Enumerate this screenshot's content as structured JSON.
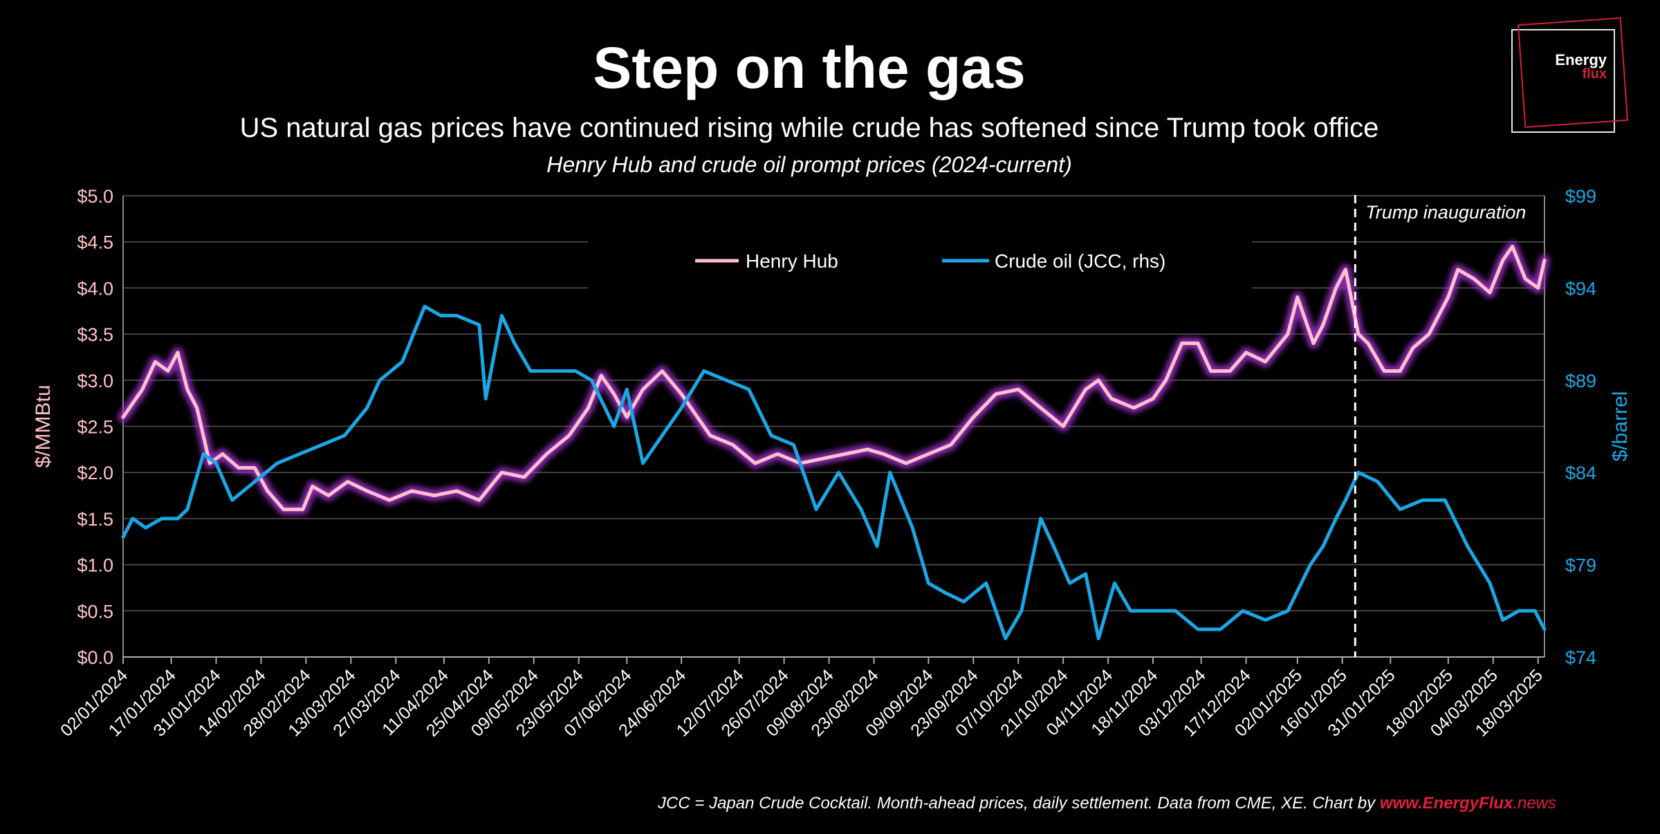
{
  "header": {
    "title": "Step on the gas",
    "subtitle": "US natural gas prices have continued rising while crude has softened since Trump took office",
    "subtitle2": "Henry Hub and crude oil prompt prices (2024-current)"
  },
  "logo": {
    "line1": "Energy",
    "line2": "flux"
  },
  "footer": {
    "note": "JCC = Japan Crude Cocktail. Month-ahead prices, daily settlement. Data from CME, XE. Chart by ",
    "link_a": "www.EnergyFlux",
    "link_b": ".news"
  },
  "colors": {
    "henry_hub": "#ffc0cb",
    "henry_hub_glow": "#9b30c8",
    "crude": "#1aa7e6",
    "left_axis": "#ffc0cb",
    "right_axis": "#1aa7e6",
    "grid": "#555555"
  },
  "chart_data": {
    "type": "line",
    "title": "Step on the gas",
    "ylabel": "$/MMBtu",
    "y2label": "$/barrel",
    "ylim": [
      0,
      5
    ],
    "y2lim": [
      74,
      99
    ],
    "grid": true,
    "legend_position": "top-center",
    "yticks": [
      "$0.0",
      "$0.5",
      "$1.0",
      "$1.5",
      "$2.0",
      "$2.5",
      "$3.0",
      "$3.5",
      "$4.0",
      "$4.5",
      "$5.0"
    ],
    "y2ticks": [
      "$74",
      "$79",
      "$84",
      "$89",
      "$94",
      "$99"
    ],
    "xticks": [
      "02/01/2024",
      "17/01/2024",
      "31/01/2024",
      "14/02/2024",
      "28/02/2024",
      "13/03/2024",
      "27/03/2024",
      "11/04/2024",
      "25/04/2024",
      "09/05/2024",
      "23/05/2024",
      "07/06/2024",
      "24/06/2024",
      "12/07/2024",
      "26/07/2024",
      "09/08/2024",
      "23/08/2024",
      "09/09/2024",
      "23/09/2024",
      "07/10/2024",
      "21/10/2024",
      "04/11/2024",
      "18/11/2024",
      "03/12/2024",
      "17/12/2024",
      "02/01/2025",
      "16/01/2025",
      "31/01/2025",
      "18/02/2025",
      "04/03/2025",
      "18/03/2025"
    ],
    "annotation": {
      "label": "Trump inauguration",
      "x": "2025-01-20"
    },
    "series": [
      {
        "name": "Henry Hub",
        "axis": "left",
        "points": [
          [
            "2024-01-02",
            2.6
          ],
          [
            "2024-01-08",
            2.9
          ],
          [
            "2024-01-12",
            3.2
          ],
          [
            "2024-01-16",
            3.1
          ],
          [
            "2024-01-19",
            3.3
          ],
          [
            "2024-01-22",
            2.9
          ],
          [
            "2024-01-25",
            2.7
          ],
          [
            "2024-01-29",
            2.1
          ],
          [
            "2024-02-02",
            2.2
          ],
          [
            "2024-02-07",
            2.05
          ],
          [
            "2024-02-12",
            2.05
          ],
          [
            "2024-02-16",
            1.8
          ],
          [
            "2024-02-21",
            1.6
          ],
          [
            "2024-02-27",
            1.6
          ],
          [
            "2024-03-01",
            1.85
          ],
          [
            "2024-03-06",
            1.75
          ],
          [
            "2024-03-12",
            1.9
          ],
          [
            "2024-03-18",
            1.8
          ],
          [
            "2024-03-25",
            1.7
          ],
          [
            "2024-04-01",
            1.8
          ],
          [
            "2024-04-08",
            1.75
          ],
          [
            "2024-04-15",
            1.8
          ],
          [
            "2024-04-22",
            1.7
          ],
          [
            "2024-04-29",
            2.0
          ],
          [
            "2024-05-06",
            1.95
          ],
          [
            "2024-05-13",
            2.2
          ],
          [
            "2024-05-20",
            2.4
          ],
          [
            "2024-05-26",
            2.7
          ],
          [
            "2024-05-30",
            3.05
          ],
          [
            "2024-06-03",
            2.85
          ],
          [
            "2024-06-07",
            2.6
          ],
          [
            "2024-06-12",
            2.9
          ],
          [
            "2024-06-18",
            3.1
          ],
          [
            "2024-06-24",
            2.85
          ],
          [
            "2024-06-28",
            2.65
          ],
          [
            "2024-07-03",
            2.4
          ],
          [
            "2024-07-10",
            2.3
          ],
          [
            "2024-07-17",
            2.1
          ],
          [
            "2024-07-24",
            2.2
          ],
          [
            "2024-07-31",
            2.1
          ],
          [
            "2024-08-07",
            2.15
          ],
          [
            "2024-08-14",
            2.2
          ],
          [
            "2024-08-21",
            2.25
          ],
          [
            "2024-08-26",
            2.2
          ],
          [
            "2024-09-02",
            2.1
          ],
          [
            "2024-09-09",
            2.2
          ],
          [
            "2024-09-16",
            2.3
          ],
          [
            "2024-09-23",
            2.6
          ],
          [
            "2024-09-30",
            2.85
          ],
          [
            "2024-10-07",
            2.9
          ],
          [
            "2024-10-14",
            2.7
          ],
          [
            "2024-10-21",
            2.5
          ],
          [
            "2024-10-28",
            2.9
          ],
          [
            "2024-11-01",
            3.0
          ],
          [
            "2024-11-05",
            2.8
          ],
          [
            "2024-11-12",
            2.7
          ],
          [
            "2024-11-18",
            2.8
          ],
          [
            "2024-11-22",
            3.0
          ],
          [
            "2024-11-27",
            3.4
          ],
          [
            "2024-12-02",
            3.4
          ],
          [
            "2024-12-06",
            3.1
          ],
          [
            "2024-12-12",
            3.1
          ],
          [
            "2024-12-17",
            3.3
          ],
          [
            "2024-12-23",
            3.2
          ],
          [
            "2024-12-30",
            3.5
          ],
          [
            "2025-01-02",
            3.9
          ],
          [
            "2025-01-07",
            3.4
          ],
          [
            "2025-01-10",
            3.6
          ],
          [
            "2025-01-14",
            4.0
          ],
          [
            "2025-01-17",
            4.2
          ],
          [
            "2025-01-21",
            3.5
          ],
          [
            "2025-01-24",
            3.4
          ],
          [
            "2025-01-29",
            3.1
          ],
          [
            "2025-02-03",
            3.1
          ],
          [
            "2025-02-07",
            3.35
          ],
          [
            "2025-02-12",
            3.5
          ],
          [
            "2025-02-18",
            3.9
          ],
          [
            "2025-02-21",
            4.2
          ],
          [
            "2025-02-26",
            4.1
          ],
          [
            "2025-03-03",
            3.95
          ],
          [
            "2025-03-07",
            4.3
          ],
          [
            "2025-03-10",
            4.45
          ],
          [
            "2025-03-14",
            4.1
          ],
          [
            "2025-03-18",
            4.0
          ],
          [
            "2025-03-20",
            4.3
          ]
        ]
      },
      {
        "name": "Crude oil (JCC, rhs)",
        "axis": "right",
        "points": [
          [
            "2024-01-02",
            80.5
          ],
          [
            "2024-01-05",
            81.5
          ],
          [
            "2024-01-09",
            81.0
          ],
          [
            "2024-01-14",
            81.5
          ],
          [
            "2024-01-19",
            81.5
          ],
          [
            "2024-01-22",
            82.0
          ],
          [
            "2024-01-27",
            85.0
          ],
          [
            "2024-01-31",
            84.5
          ],
          [
            "2024-02-05",
            82.5
          ],
          [
            "2024-02-12",
            83.5
          ],
          [
            "2024-02-19",
            84.5
          ],
          [
            "2024-02-26",
            85.0
          ],
          [
            "2024-03-04",
            85.5
          ],
          [
            "2024-03-11",
            86.0
          ],
          [
            "2024-03-18",
            87.5
          ],
          [
            "2024-03-22",
            89.0
          ],
          [
            "2024-03-29",
            90.0
          ],
          [
            "2024-04-05",
            93.0
          ],
          [
            "2024-04-10",
            92.5
          ],
          [
            "2024-04-15",
            92.5
          ],
          [
            "2024-04-22",
            92.0
          ],
          [
            "2024-04-24",
            88.0
          ],
          [
            "2024-04-29",
            92.5
          ],
          [
            "2024-05-03",
            91.0
          ],
          [
            "2024-05-08",
            89.5
          ],
          [
            "2024-05-15",
            89.5
          ],
          [
            "2024-05-22",
            89.5
          ],
          [
            "2024-05-27",
            89.0
          ],
          [
            "2024-06-03",
            86.5
          ],
          [
            "2024-06-07",
            88.5
          ],
          [
            "2024-06-12",
            84.5
          ],
          [
            "2024-06-18",
            86.0
          ],
          [
            "2024-06-24",
            87.5
          ],
          [
            "2024-07-01",
            89.5
          ],
          [
            "2024-07-08",
            89.0
          ],
          [
            "2024-07-15",
            88.5
          ],
          [
            "2024-07-22",
            86.0
          ],
          [
            "2024-07-29",
            85.5
          ],
          [
            "2024-08-05",
            82.0
          ],
          [
            "2024-08-12",
            84.0
          ],
          [
            "2024-08-19",
            82.0
          ],
          [
            "2024-08-24",
            80.0
          ],
          [
            "2024-08-28",
            84.0
          ],
          [
            "2024-09-04",
            81.0
          ],
          [
            "2024-09-09",
            78.0
          ],
          [
            "2024-09-14",
            77.5
          ],
          [
            "2024-09-20",
            77.0
          ],
          [
            "2024-09-27",
            78.0
          ],
          [
            "2024-10-03",
            75.0
          ],
          [
            "2024-10-08",
            76.5
          ],
          [
            "2024-10-14",
            81.5
          ],
          [
            "2024-10-18",
            80.0
          ],
          [
            "2024-10-23",
            78.0
          ],
          [
            "2024-10-28",
            78.5
          ],
          [
            "2024-11-01",
            75.0
          ],
          [
            "2024-11-06",
            78.0
          ],
          [
            "2024-11-11",
            76.5
          ],
          [
            "2024-11-18",
            76.5
          ],
          [
            "2024-11-25",
            76.5
          ],
          [
            "2024-12-02",
            75.5
          ],
          [
            "2024-12-09",
            75.5
          ],
          [
            "2024-12-16",
            76.5
          ],
          [
            "2024-12-23",
            76.0
          ],
          [
            "2024-12-30",
            76.5
          ],
          [
            "2025-01-06",
            79.0
          ],
          [
            "2025-01-10",
            80.0
          ],
          [
            "2025-01-14",
            81.5
          ],
          [
            "2025-01-17",
            82.5
          ],
          [
            "2025-01-21",
            84.0
          ],
          [
            "2025-01-27",
            83.5
          ],
          [
            "2025-02-03",
            82.0
          ],
          [
            "2025-02-10",
            82.5
          ],
          [
            "2025-02-17",
            82.5
          ],
          [
            "2025-02-24",
            80.0
          ],
          [
            "2025-03-03",
            78.0
          ],
          [
            "2025-03-07",
            76.0
          ],
          [
            "2025-03-12",
            76.5
          ],
          [
            "2025-03-17",
            76.5
          ],
          [
            "2025-03-20",
            75.5
          ]
        ]
      }
    ]
  }
}
